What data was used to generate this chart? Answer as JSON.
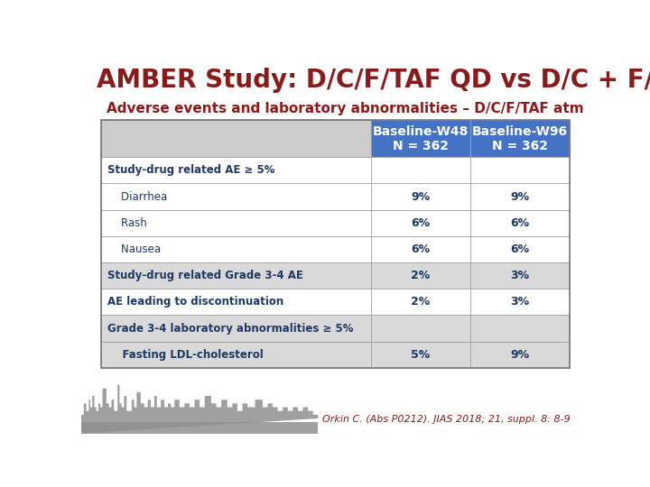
{
  "title": "AMBER Study: D/C/F/TAF QD vs D/C + F/TDF QD",
  "subtitle": "Adverse events and laboratory abnormalities – D/C/F/TAF atm",
  "title_color": "#8B1A1A",
  "subtitle_color": "#8B1A1A",
  "title_fontsize": 20,
  "subtitle_fontsize": 11,
  "col_headers": [
    "Baseline-W48\nN = 362",
    "Baseline-W96\nN = 362"
  ],
  "col_header_bg": "#4472C4",
  "col_header_color": "#FFFFFF",
  "col_header_fontsize": 10,
  "row_label_col": "#1F3864",
  "row_data_col": "#1F3864",
  "rows": [
    {
      "label": "Study-drug related AE ≥ 5%",
      "indent": false,
      "bold": true,
      "values": [
        "",
        ""
      ],
      "bg": "#FFFFFF"
    },
    {
      "label": "    Diarrhea",
      "indent": false,
      "bold": false,
      "values": [
        "9%",
        "9%"
      ],
      "bg": "#FFFFFF"
    },
    {
      "label": "    Rash",
      "indent": false,
      "bold": false,
      "values": [
        "6%",
        "6%"
      ],
      "bg": "#FFFFFF"
    },
    {
      "label": "    Nausea",
      "indent": false,
      "bold": false,
      "values": [
        "6%",
        "6%"
      ],
      "bg": "#FFFFFF"
    },
    {
      "label": "Study-drug related Grade 3-4 AE",
      "indent": false,
      "bold": true,
      "values": [
        "2%",
        "3%"
      ],
      "bg": "#D9D9D9"
    },
    {
      "label": "AE leading to discontinuation",
      "indent": false,
      "bold": true,
      "values": [
        "2%",
        "3%"
      ],
      "bg": "#FFFFFF"
    },
    {
      "label": "Grade 3-4 laboratory abnormalities ≥ 5%",
      "indent": false,
      "bold": true,
      "values": [
        "",
        ""
      ],
      "bg": "#D9D9D9"
    },
    {
      "label": "    Fasting LDL-cholesterol",
      "indent": false,
      "bold": true,
      "values": [
        "5%",
        "9%"
      ],
      "bg": "#D9D9D9"
    }
  ],
  "table_border_color": "#999999",
  "row_separator_color": "#999999",
  "footnote": "Orkin C. (Abs P0212). JIAS 2018; 21, suppl. 8: 8-9",
  "footnote_color": "#8B1A1A",
  "footnote_fontsize": 8,
  "bg_color": "#FFFFFF",
  "table_header_row_bg": "#CCCCCC",
  "skyline_color": "#A0A0A0"
}
